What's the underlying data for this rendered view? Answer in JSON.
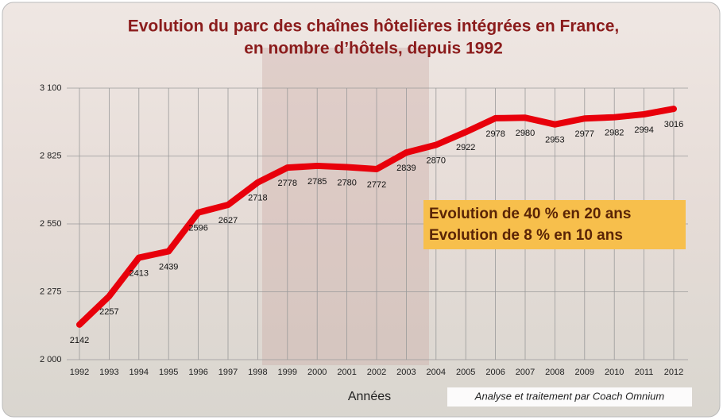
{
  "chart_data": {
    "type": "line",
    "title": [
      "Evolution du parc des chaînes hôtelières intégrées en France,",
      "en nombre d’hôtels, depuis 1992"
    ],
    "categories": [
      "1992",
      "1993",
      "1994",
      "1995",
      "1996",
      "1997",
      "1998",
      "1999",
      "2000",
      "2001",
      "2002",
      "2003",
      "2004",
      "2005",
      "2006",
      "2007",
      "2008",
      "2009",
      "2010",
      "2011",
      "2012"
    ],
    "series": [
      {
        "name": "Parc",
        "color": "#e8000b",
        "values": [
          2142,
          2257,
          2413,
          2439,
          2596,
          2627,
          2718,
          2778,
          2785,
          2780,
          2772,
          2839,
          2870,
          2922,
          2978,
          2980,
          2953,
          2977,
          2982,
          2994,
          3016
        ]
      }
    ],
    "ylim": [
      2000,
      3100
    ],
    "yticks": [
      {
        "value": 2000,
        "label": "2 000"
      },
      {
        "value": 2275,
        "label": "2 275"
      },
      {
        "value": 2550,
        "label": "2 550"
      },
      {
        "value": 2825,
        "label": "2 825"
      },
      {
        "value": 3100,
        "label": "3 100"
      }
    ],
    "grid": true,
    "xlabel": "Années",
    "annotations": [
      "Evolution de 40 % en 20 ans",
      "Evolution de 8 % en 10 ans"
    ],
    "source": "Analyse et traitement par Coach Omnium"
  }
}
